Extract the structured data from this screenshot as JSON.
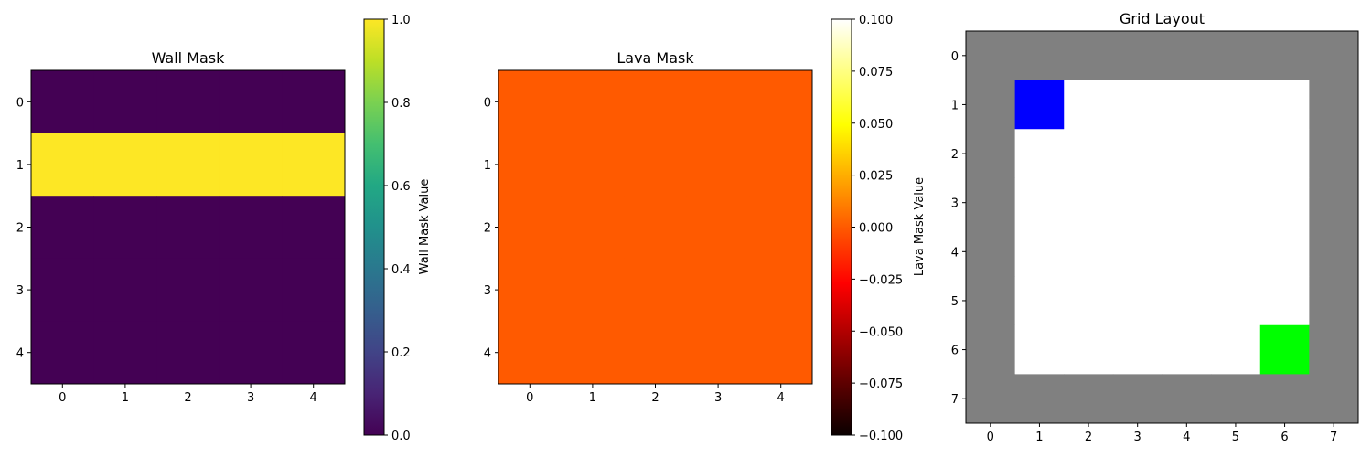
{
  "chart_data": [
    {
      "type": "heatmap",
      "title": "Wall Mask",
      "x": [
        0,
        1,
        2,
        3,
        4
      ],
      "y": [
        0,
        1,
        2,
        3,
        4
      ],
      "values": [
        [
          0,
          0,
          0,
          0,
          0
        ],
        [
          1,
          1,
          1,
          1,
          1
        ],
        [
          0,
          0,
          0,
          0,
          0
        ],
        [
          0,
          0,
          0,
          0,
          0
        ],
        [
          0,
          0,
          0,
          0,
          0
        ]
      ],
      "colormap": "viridis",
      "colorbar": {
        "label": "Wall Mask Value",
        "range": [
          0,
          1
        ],
        "ticks": [
          "0.0",
          "0.2",
          "0.4",
          "0.6",
          "0.8",
          "1.0"
        ]
      }
    },
    {
      "type": "heatmap",
      "title": "Lava Mask",
      "x": [
        0,
        1,
        2,
        3,
        4
      ],
      "y": [
        0,
        1,
        2,
        3,
        4
      ],
      "values": [
        [
          0,
          0,
          0,
          0,
          0
        ],
        [
          0,
          0,
          0,
          0,
          0
        ],
        [
          0,
          0,
          0,
          0,
          0
        ],
        [
          0,
          0,
          0,
          0,
          0
        ],
        [
          0,
          0,
          0,
          0,
          0
        ]
      ],
      "colormap": "hot",
      "colorbar": {
        "label": "Lava Mask Value",
        "range": [
          -0.1,
          0.1
        ],
        "ticks": [
          "−0.100",
          "−0.075",
          "−0.050",
          "−0.025",
          "0.000",
          "0.025",
          "0.050",
          "0.075",
          "0.100"
        ]
      }
    },
    {
      "type": "heatmap",
      "title": "Grid Layout",
      "x": [
        0,
        1,
        2,
        3,
        4,
        5,
        6,
        7
      ],
      "y": [
        0,
        1,
        2,
        3,
        4,
        5,
        6,
        7
      ],
      "cell_colors": {
        "wall": "#808080",
        "floor": "#ffffff",
        "agent": "#0000ff",
        "goal": "#00ff00"
      },
      "grid": [
        [
          "wall",
          "wall",
          "wall",
          "wall",
          "wall",
          "wall",
          "wall",
          "wall"
        ],
        [
          "wall",
          "agent",
          "floor",
          "floor",
          "floor",
          "floor",
          "floor",
          "wall"
        ],
        [
          "wall",
          "floor",
          "floor",
          "floor",
          "floor",
          "floor",
          "floor",
          "wall"
        ],
        [
          "wall",
          "floor",
          "floor",
          "floor",
          "floor",
          "floor",
          "floor",
          "wall"
        ],
        [
          "wall",
          "floor",
          "floor",
          "floor",
          "floor",
          "floor",
          "floor",
          "wall"
        ],
        [
          "wall",
          "floor",
          "floor",
          "floor",
          "floor",
          "floor",
          "floor",
          "wall"
        ],
        [
          "wall",
          "floor",
          "floor",
          "floor",
          "floor",
          "floor",
          "goal",
          "wall"
        ],
        [
          "wall",
          "wall",
          "wall",
          "wall",
          "wall",
          "wall",
          "wall",
          "wall"
        ]
      ]
    }
  ]
}
